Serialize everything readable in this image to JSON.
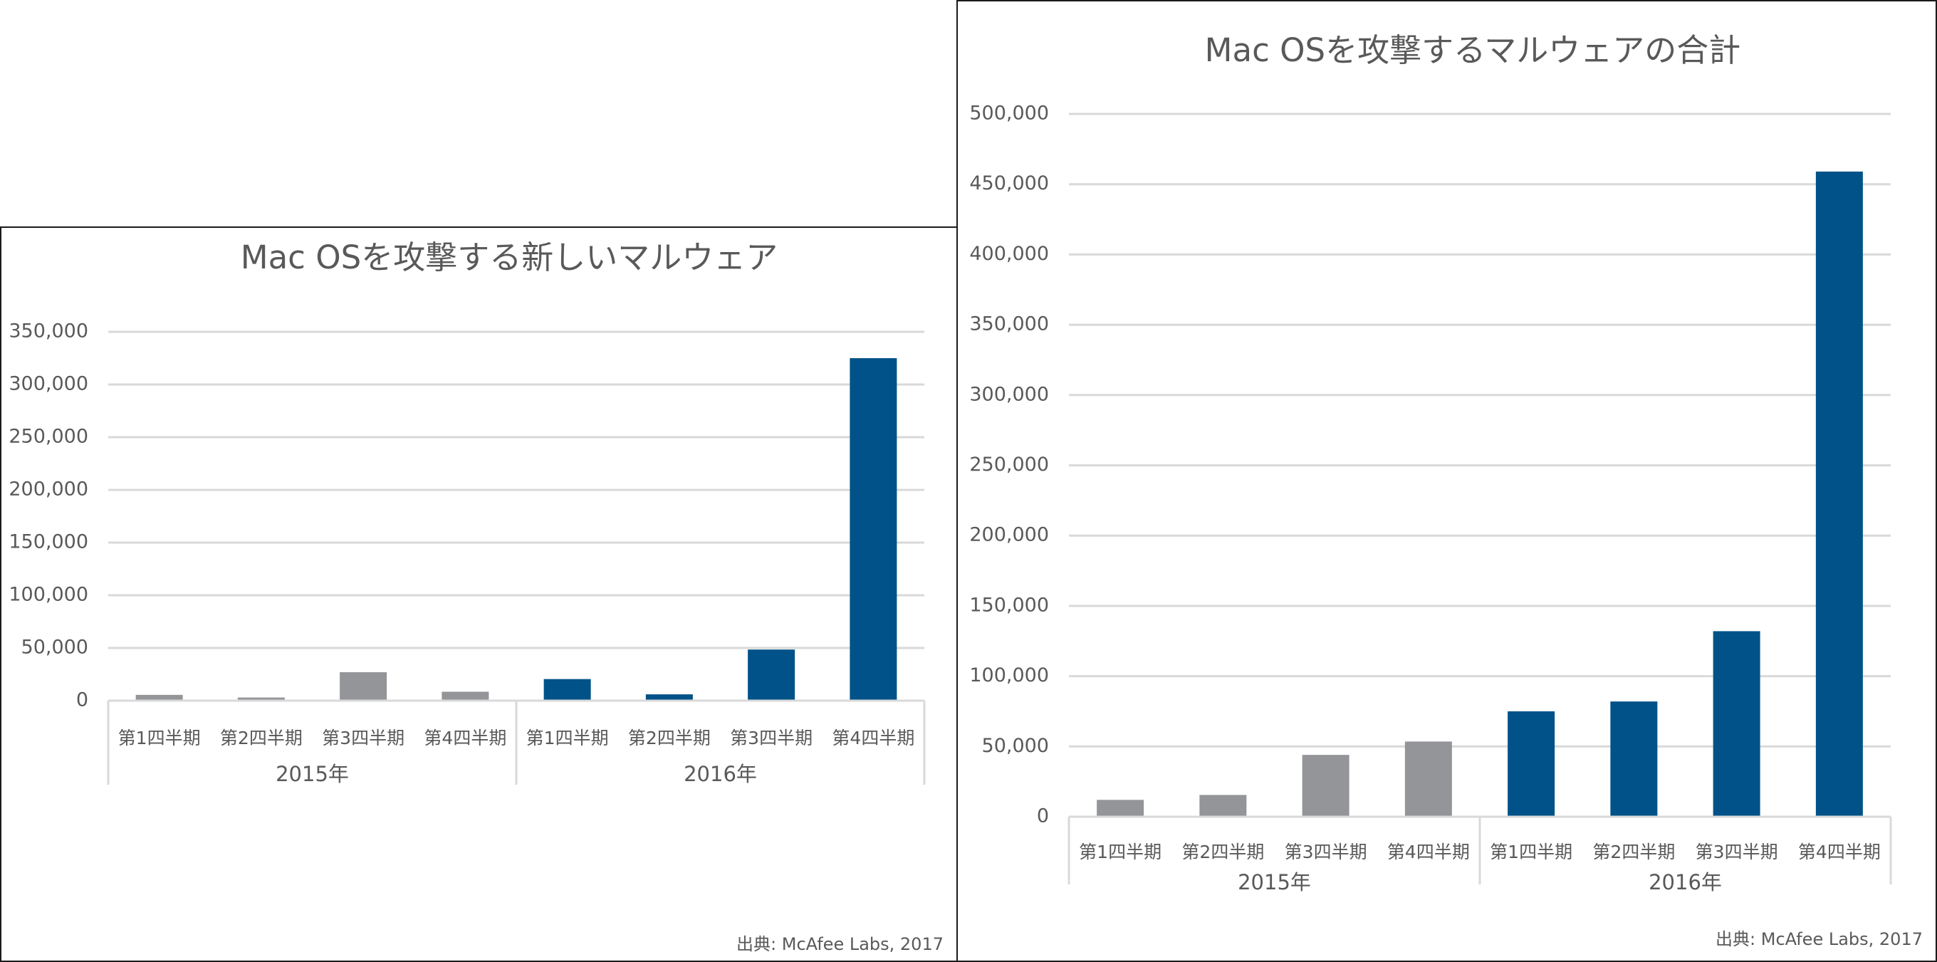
{
  "chart_data": [
    {
      "id": "left",
      "type": "bar",
      "title": "Mac OSを攻撃する新しいマルウェア",
      "categories": [
        "第1四半期",
        "第2四半期",
        "第3四半期",
        "第4四半期",
        "第1四半期",
        "第2四半期",
        "第3四半期",
        "第4四半期"
      ],
      "groups": [
        {
          "label": "2015年",
          "start": 0,
          "end": 3
        },
        {
          "label": "2016年",
          "start": 4,
          "end": 7
        }
      ],
      "values": [
        5500,
        3000,
        27000,
        8500,
        20500,
        6000,
        48500,
        325000
      ],
      "bar_colors": [
        "#939598",
        "#939598",
        "#939598",
        "#939598",
        "#005288",
        "#005288",
        "#005288",
        "#005288"
      ],
      "ylim": [
        0,
        350000
      ],
      "yticks": [
        0,
        50000,
        100000,
        150000,
        200000,
        250000,
        300000,
        350000
      ],
      "ytick_labels": [
        "0",
        "50,000",
        "100,000",
        "150,000",
        "200,000",
        "250,000",
        "300,000",
        "350,000"
      ],
      "grid": true,
      "source": "出典: McAfee Labs, 2017"
    },
    {
      "id": "right",
      "type": "bar",
      "title": "Mac OSを攻撃するマルウェアの合計",
      "categories": [
        "第1四半期",
        "第2四半期",
        "第3四半期",
        "第4四半期",
        "第1四半期",
        "第2四半期",
        "第3四半期",
        "第4四半期"
      ],
      "groups": [
        {
          "label": "2015年",
          "start": 0,
          "end": 3
        },
        {
          "label": "2016年",
          "start": 4,
          "end": 7
        }
      ],
      "values": [
        12000,
        15500,
        44000,
        53500,
        75000,
        82000,
        132000,
        459000
      ],
      "bar_colors": [
        "#939598",
        "#939598",
        "#939598",
        "#939598",
        "#005288",
        "#005288",
        "#005288",
        "#005288"
      ],
      "ylim": [
        0,
        500000
      ],
      "yticks": [
        0,
        50000,
        100000,
        150000,
        200000,
        250000,
        300000,
        350000,
        400000,
        450000,
        500000
      ],
      "ytick_labels": [
        "0",
        "50,000",
        "100,000",
        "150,000",
        "200,000",
        "250,000",
        "300,000",
        "350,000",
        "400,000",
        "450,000",
        "500,000"
      ],
      "grid": true,
      "source": "出典: McAfee Labs, 2017"
    }
  ]
}
